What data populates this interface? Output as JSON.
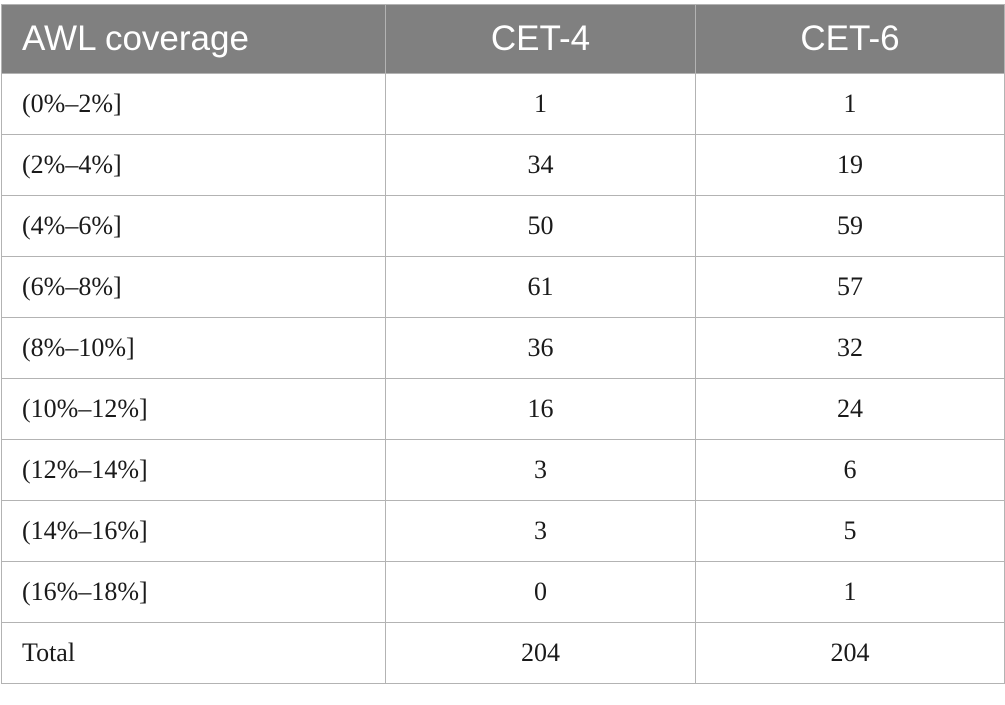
{
  "table": {
    "headers": [
      "AWL coverage",
      "CET-4",
      "CET-6"
    ],
    "rows": [
      [
        "(0%–2%]",
        "1",
        "1"
      ],
      [
        "(2%–4%]",
        "34",
        "19"
      ],
      [
        "(4%–6%]",
        "50",
        "59"
      ],
      [
        "(6%–8%]",
        "61",
        "57"
      ],
      [
        "(8%–10%]",
        "36",
        "32"
      ],
      [
        "(10%–12%]",
        "16",
        "24"
      ],
      [
        "(12%–14%]",
        "3",
        "6"
      ],
      [
        "(14%–16%]",
        "3",
        "5"
      ],
      [
        "(16%–18%]",
        "0",
        "1"
      ],
      [
        "Total",
        "204",
        "204"
      ]
    ]
  },
  "colors": {
    "header_bg": "#808080",
    "header_text": "#ffffff",
    "border": "#b3b3b3"
  }
}
